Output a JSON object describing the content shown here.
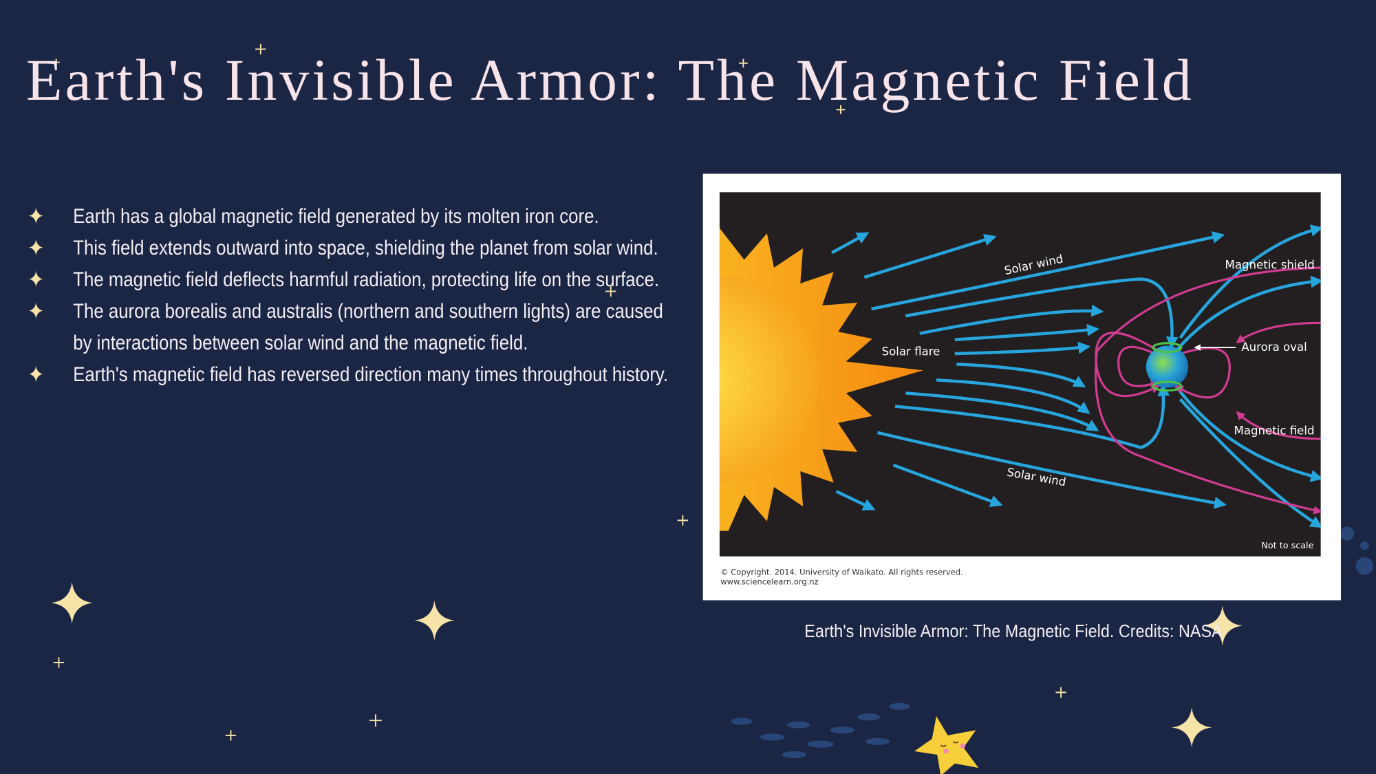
{
  "header": {
    "title": "Earth's Invisible Armor: The Magnetic Field"
  },
  "bullets": [
    "Earth has a global magnetic field generated by its molten iron core.",
    "This field extends outward into space, shielding the planet from solar wind.",
    "The magnetic field deflects harmful radiation, protecting life on the surface.",
    "The aurora borealis and australis (northern and southern lights) are caused by interactions between solar wind and the magnetic field.",
    "Earth's magnetic field has reversed direction many times throughout history."
  ],
  "figure": {
    "labels": [
      "Solar wind",
      "Magnetic shield",
      "Solar flare",
      "Aurora oval",
      "Magnetic field",
      "Solar wind"
    ],
    "note": "Not to scale",
    "copyright": "© Copyright. 2014. University of Waikato. All rights reserved.",
    "website": "www.sciencelearn.org.nz",
    "caption": "Earth's Invisible Armor: The Magnetic Field. Credits: NASA"
  }
}
